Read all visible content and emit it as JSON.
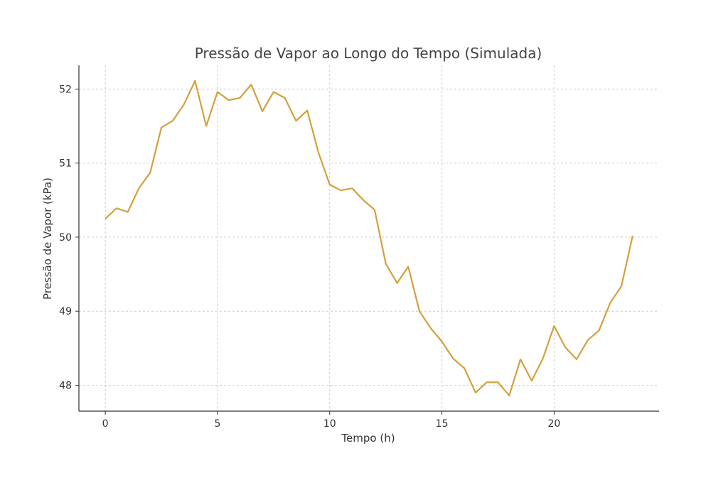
{
  "chart_data": {
    "type": "line",
    "title": "Pressão de Vapor ao Longo do Tempo (Simulada)",
    "xlabel": "Tempo (h)",
    "ylabel": "Pressão de Vapor (kPa)",
    "xlim": [
      -1.175,
      24.675
    ],
    "ylim": [
      47.65,
      52.32
    ],
    "xticks": [
      0,
      5,
      10,
      15,
      20
    ],
    "yticks": [
      48,
      49,
      50,
      51,
      52
    ],
    "grid": true,
    "color": "#D4A03C",
    "x": [
      0,
      0.5,
      1,
      1.5,
      2,
      2.5,
      3,
      3.5,
      4,
      4.5,
      5,
      5.5,
      6,
      6.5,
      7,
      7.5,
      8,
      8.5,
      9,
      9.5,
      10,
      10.5,
      11,
      11.5,
      12,
      12.5,
      13,
      13.5,
      14,
      14.5,
      15,
      15.5,
      16,
      16.5,
      17,
      17.5,
      18,
      18.5,
      19,
      19.5,
      20,
      20.5,
      21,
      21.5,
      22,
      22.5,
      23,
      23.5
    ],
    "values": [
      50.25,
      50.39,
      50.34,
      50.66,
      50.87,
      51.48,
      51.57,
      51.79,
      52.11,
      51.5,
      51.96,
      51.85,
      51.88,
      52.06,
      51.7,
      51.96,
      51.88,
      51.57,
      51.71,
      51.14,
      50.71,
      50.63,
      50.66,
      50.5,
      50.37,
      49.64,
      49.38,
      49.6,
      49.0,
      48.77,
      48.59,
      48.36,
      48.23,
      47.9,
      48.04,
      48.04,
      47.86,
      48.35,
      48.06,
      48.36,
      48.8,
      48.51,
      48.35,
      48.61,
      48.74,
      49.11,
      49.34,
      50.02
    ]
  }
}
